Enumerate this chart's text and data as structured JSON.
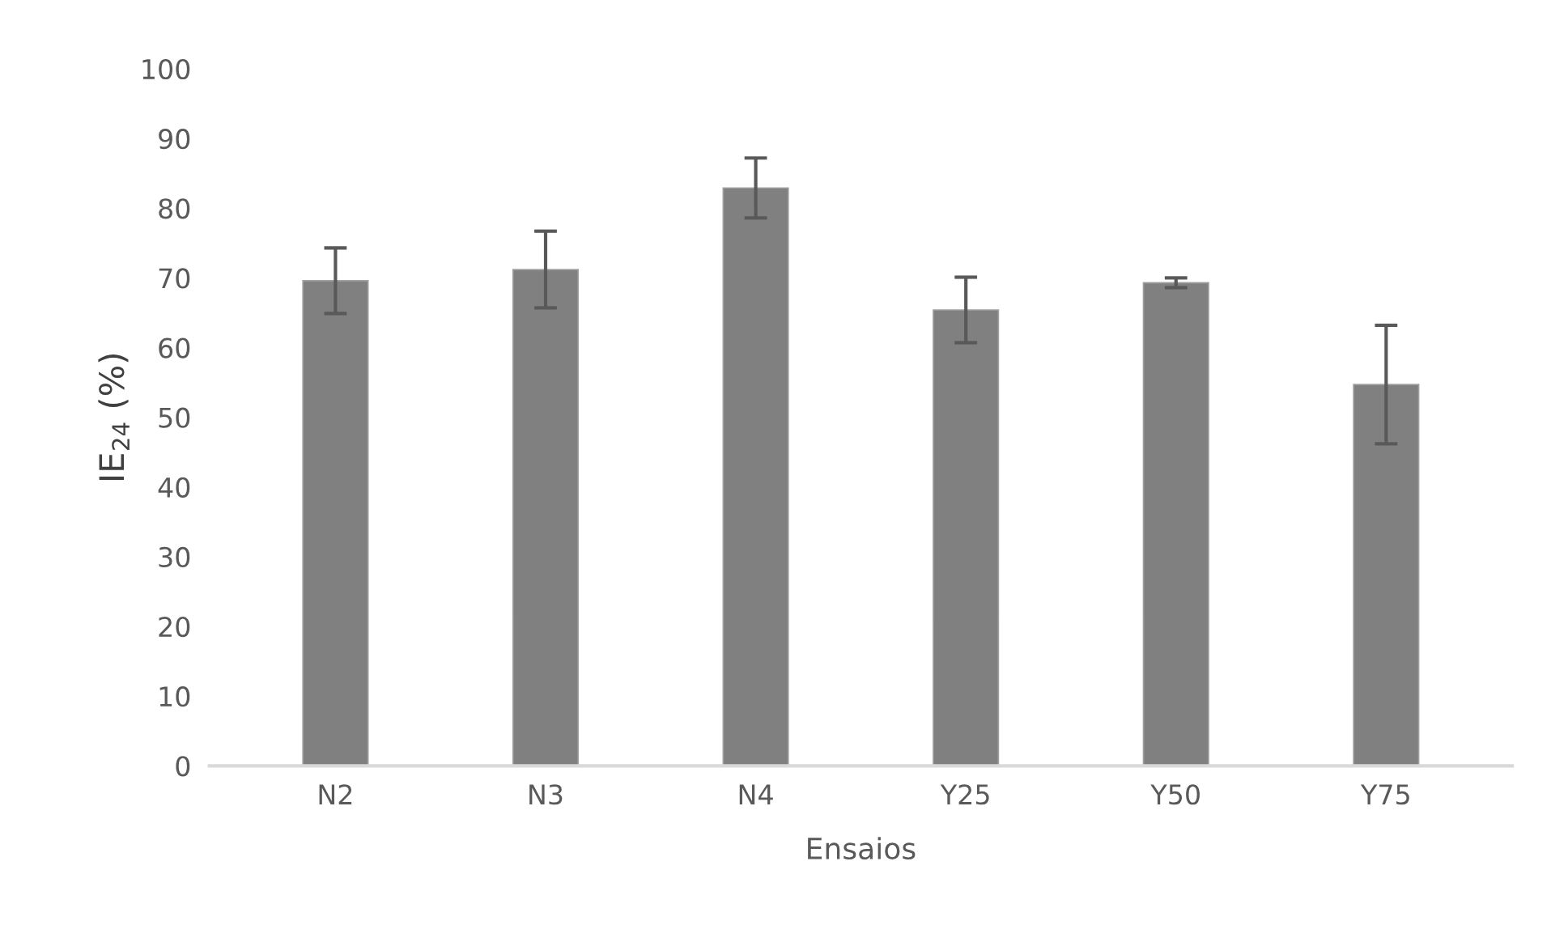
{
  "chart_data": {
    "type": "bar",
    "ylabel": "IE$_{24}$ (%)",
    "xlabel": "Ensaios",
    "categories": [
      "N2",
      "N3",
      "N4",
      "Y25",
      "Y50",
      "Y75"
    ],
    "values": [
      69.6,
      71.2,
      82.9,
      65.4,
      69.3,
      54.7
    ],
    "errors": [
      4.7,
      5.5,
      4.3,
      4.7,
      0.7,
      8.5
    ],
    "color": "#808080",
    "ylim": [
      0,
      100
    ],
    "yticks": [
      0,
      10,
      20,
      30,
      40,
      50,
      60,
      70,
      80,
      90,
      100
    ],
    "grid": false
  }
}
